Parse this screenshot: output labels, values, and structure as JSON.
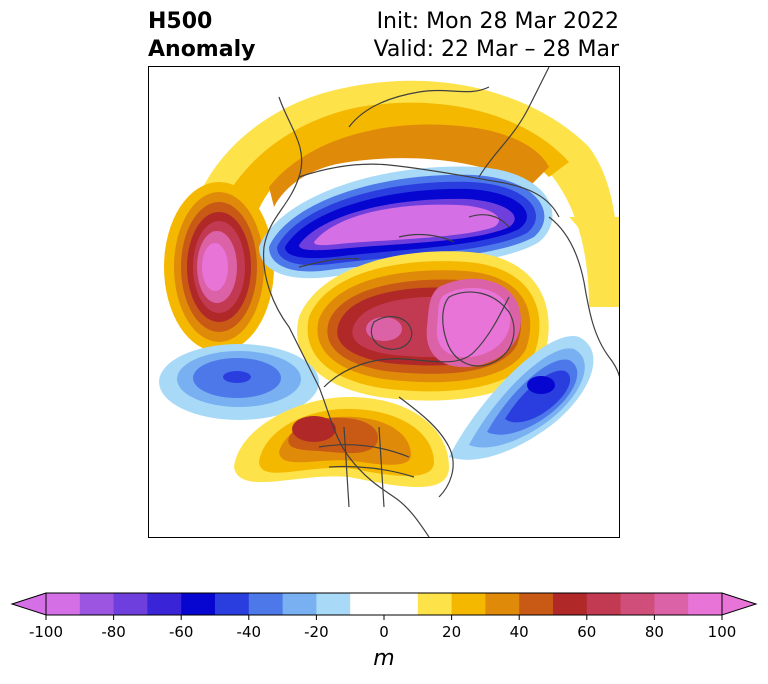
{
  "title": {
    "left_line1": "H500",
    "left_line2": "Anomaly",
    "right_line1": "Init: Mon 28 Mar 2022",
    "right_line2": "Valid: 22 Mar – 28 Mar"
  },
  "colorbar": {
    "unit": "m",
    "ticks": [
      "-100",
      "-80",
      "-60",
      "-40",
      "-20",
      "0",
      "20",
      "40",
      "60",
      "80",
      "100"
    ],
    "range": [
      -100,
      100
    ],
    "step": 10,
    "colors": [
      "#d46fe6",
      "#9c55e0",
      "#6e3fdc",
      "#3a24d8",
      "#0606d0",
      "#2a3ee0",
      "#4d78ea",
      "#78b0f2",
      "#a8daf8",
      "#ffffff",
      "#ffffff",
      "#fde24a",
      "#f5b800",
      "#e08a0a",
      "#c85a16",
      "#b02828",
      "#c23a52",
      "#cf4f7a",
      "#dc62a8",
      "#e874d8"
    ],
    "extend": "both"
  },
  "map": {
    "projection": "north-polar-stereographic",
    "features": [
      "coastlines",
      "country-borders",
      "us-state-borders"
    ]
  }
}
